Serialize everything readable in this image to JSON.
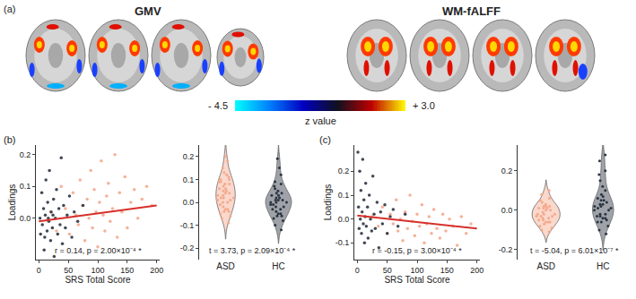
{
  "chart_data": [
    {
      "type": "brain_map",
      "label": "(a)",
      "titles": [
        "GMV",
        "WM-fALFF"
      ],
      "colorbar": {
        "range": [
          -4.5,
          3.0
        ],
        "ticks": [
          {
            "value": -4.5,
            "label": "- 4.5"
          },
          {
            "value": 3.0,
            "label": "+ 3.0"
          }
        ],
        "title": "z value",
        "colors": [
          "#00ffff",
          "#0080ff",
          "#0000c0",
          "#101020",
          "#c00000",
          "#ffff00"
        ]
      }
    },
    {
      "type": "scatter_violin",
      "label": "(b)",
      "series": [
        {
          "name": "ASD",
          "color": "#f4a98c",
          "x": [
            20,
            30,
            38,
            45,
            52,
            58,
            63,
            67,
            70,
            74,
            78,
            82,
            85,
            88,
            91,
            94,
            97,
            100,
            103,
            106,
            109,
            112,
            115,
            118,
            121,
            125,
            129,
            133,
            137,
            141,
            146,
            150,
            156,
            162,
            168,
            175,
            183,
            192
          ],
          "y": [
            0.02,
            -0.04,
            0.1,
            0.03,
            -0.05,
            0.08,
            0.01,
            -0.02,
            0.12,
            0.04,
            -0.07,
            0.06,
            0.0,
            0.15,
            -0.03,
            0.09,
            0.02,
            -0.09,
            0.05,
            0.18,
            0.01,
            -0.04,
            0.07,
            0.11,
            -0.01,
            0.03,
            0.2,
            -0.06,
            0.08,
            0.02,
            0.13,
            -0.03,
            0.05,
            0.09,
            0.0,
            0.06,
            0.1,
            0.04
          ]
        },
        {
          "name": "HC",
          "color": "#2b3440",
          "x": [
            2,
            3,
            5,
            6,
            8,
            9,
            10,
            11,
            12,
            14,
            15,
            16,
            17,
            18,
            20,
            21,
            23,
            24,
            25,
            26,
            28,
            30,
            32,
            34,
            36,
            38,
            40,
            42,
            45,
            48,
            52,
            56,
            60,
            66,
            75
          ],
          "y": [
            0.0,
            -0.05,
            0.08,
            -0.02,
            0.03,
            -0.1,
            -0.06,
            0.01,
            0.12,
            -0.04,
            0.05,
            0.0,
            -0.01,
            0.15,
            -0.07,
            0.02,
            -0.03,
            0.01,
            0.06,
            -0.12,
            0.0,
            0.09,
            -0.05,
            0.03,
            -0.02,
            0.19,
            -0.08,
            0.04,
            -0.03,
            0.01,
            0.07,
            -0.06,
            0.02,
            -0.01,
            0.04
          ]
        }
      ],
      "scatter": {
        "x_label": "SRS Total Score",
        "y_label": "Loadings",
        "xlim": [
          -5,
          205
        ],
        "xticks": [
          0,
          50,
          100,
          150,
          200
        ],
        "ylim": [
          -0.13,
          0.23
        ],
        "yticks": [
          {
            "value": 0,
            "label": "0.0"
          },
          0.1,
          0.2
        ],
        "fit": {
          "x": [
            0,
            200
          ],
          "y": [
            -0.01,
            0.04
          ],
          "color": "#d7302b"
        },
        "annotation": "r = 0.14, p = 2.00×10⁻⁴ *"
      },
      "violin": {
        "ylim": [
          -0.25,
          0.25
        ],
        "yticks": [
          -0.2,
          -0.1,
          {
            "value": 0,
            "label": "0.0"
          },
          0.1,
          0.2
        ],
        "annotation": "t = 3.73, p = 2.09×10⁻⁴ *"
      }
    },
    {
      "type": "scatter_violin",
      "label": "(c)",
      "series": [
        {
          "name": "ASD",
          "color": "#f4a98c",
          "x": [
            25,
            35,
            42,
            50,
            55,
            60,
            65,
            68,
            72,
            76,
            80,
            84,
            88,
            92,
            96,
            100,
            104,
            108,
            112,
            116,
            120,
            124,
            128,
            133,
            138,
            143,
            148,
            154,
            160,
            167,
            174,
            182,
            190
          ],
          "y": [
            0.01,
            -0.03,
            0.05,
            -0.06,
            0.02,
            -0.02,
            0.08,
            -0.05,
            0.0,
            -0.09,
            0.03,
            -0.04,
            0.1,
            -0.01,
            -0.07,
            0.02,
            -0.03,
            0.06,
            -0.1,
            -0.02,
            0.01,
            -0.06,
            0.04,
            -0.04,
            -0.08,
            0.02,
            -0.05,
            0.0,
            -0.03,
            -0.11,
            0.01,
            -0.06,
            -0.02
          ]
        },
        {
          "name": "HC",
          "color": "#2b3440",
          "x": [
            1,
            2,
            3,
            4,
            5,
            6,
            7,
            8,
            9,
            10,
            11,
            12,
            13,
            14,
            15,
            17,
            18,
            20,
            22,
            24,
            26,
            28,
            30,
            33,
            36,
            39,
            42,
            46,
            50,
            55,
            60,
            68,
            80
          ],
          "y": [
            0.28,
            0.05,
            -0.04,
            0.2,
            0.0,
            0.12,
            -0.06,
            0.03,
            0.25,
            -0.02,
            0.08,
            -0.1,
            0.01,
            0.15,
            -0.03,
            0.05,
            -0.08,
            0.1,
            0.0,
            -0.05,
            0.18,
            0.02,
            -0.04,
            0.07,
            -0.12,
            0.03,
            -0.02,
            0.06,
            -0.06,
            0.01,
            0.04,
            -0.03,
            0.02
          ]
        }
      ],
      "scatter": {
        "x_label": "SRS Total Score",
        "y_label": "Loadings",
        "xlim": [
          -5,
          205
        ],
        "xticks": [
          0,
          50,
          100,
          150,
          200
        ],
        "ylim": [
          -0.17,
          0.31
        ],
        "yticks": [
          -0.1,
          {
            "value": 0,
            "label": "0.0"
          },
          0.1,
          0.2
        ],
        "fit": {
          "x": [
            0,
            200
          ],
          "y": [
            0.015,
            -0.04
          ],
          "color": "#d7302b"
        },
        "annotation": "r = -0.15, p = 3.00×10⁻⁴ *"
      },
      "violin": {
        "ylim": [
          -0.25,
          0.33
        ],
        "yticks": [
          -0.2,
          {
            "value": 0,
            "label": "0.0"
          },
          0.2
        ],
        "annotation": "t = -5.04, p = 6.01×10⁻⁷ *"
      }
    }
  ]
}
